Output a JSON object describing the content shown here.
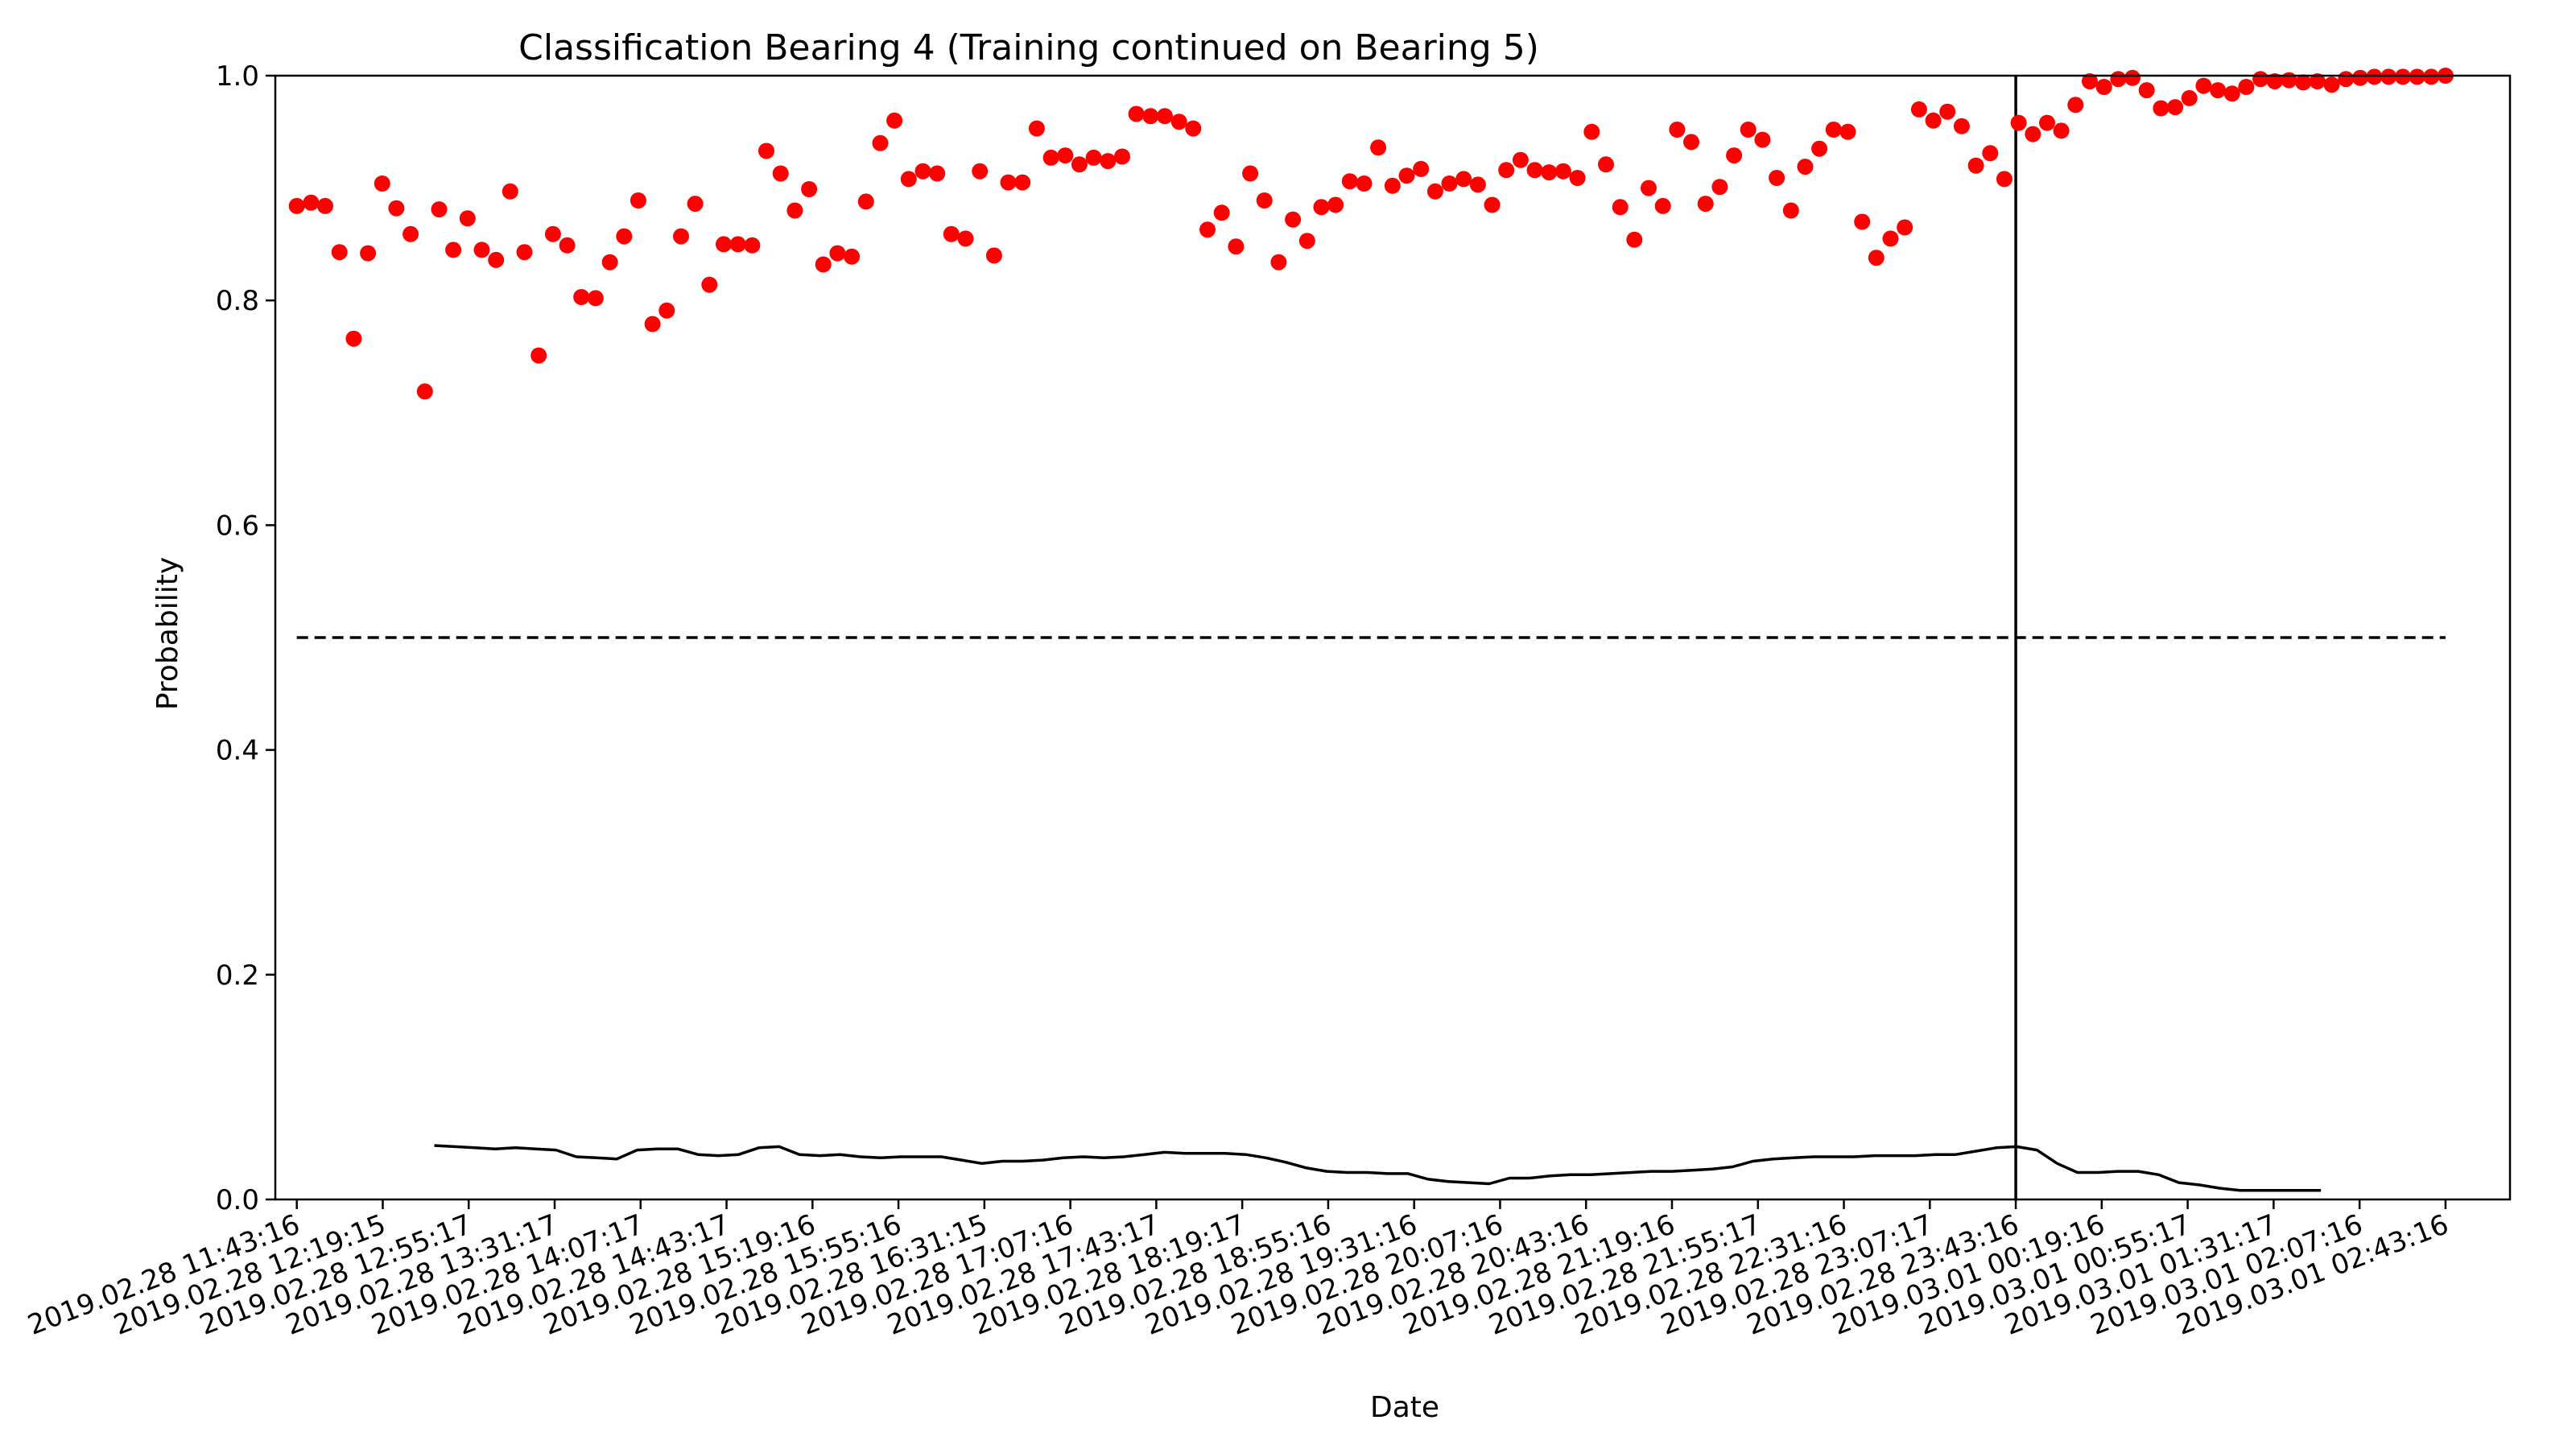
{
  "chart_data": {
    "type": "scatter",
    "title": "Classification Bearing 4 (Training continued on Bearing 5)",
    "xlabel": "Date",
    "ylabel": "Probability",
    "ylim": [
      0,
      1
    ],
    "grid": false,
    "y_ticks": [
      0.0,
      0.2,
      0.4,
      0.6,
      0.8,
      1.0
    ],
    "y_tick_labels": [
      "0.0",
      "0.2",
      "0.4",
      "0.6",
      "0.8",
      "1.0"
    ],
    "x_tick_labels": [
      "2019.02.28 11:43:16",
      "2019.02.28 12:19:15",
      "2019.02.28 12:55:17",
      "2019.02.28 13:31:17",
      "2019.02.28 14:07:17",
      "2019.02.28 14:43:17",
      "2019.02.28 15:19:16",
      "2019.02.28 15:55:16",
      "2019.02.28 16:31:15",
      "2019.02.28 17:07:16",
      "2019.02.28 17:43:17",
      "2019.02.28 18:19:17",
      "2019.02.28 18:55:16",
      "2019.02.28 19:31:16",
      "2019.02.28 20:07:16",
      "2019.02.28 20:43:16",
      "2019.02.28 21:19:16",
      "2019.02.28 21:55:17",
      "2019.02.28 22:31:16",
      "2019.02.28 23:07:17",
      "2019.02.28 23:43:16",
      "2019.03.01 00:19:16",
      "2019.03.01 00:55:17",
      "2019.03.01 01:31:17",
      "2019.03.01 02:07:16",
      "2019.03.01 02:43:16"
    ],
    "xlim": [
      -0.25,
      25.75
    ],
    "points_color": "#ff0000",
    "points": [
      0.884,
      0.887,
      0.884,
      0.843,
      0.766,
      0.842,
      0.904,
      0.882,
      0.859,
      0.719,
      0.881,
      0.845,
      0.873,
      0.845,
      0.836,
      0.897,
      0.843,
      0.751,
      0.859,
      0.849,
      0.803,
      0.802,
      0.834,
      0.857,
      0.889,
      0.779,
      0.791,
      0.857,
      0.886,
      0.814,
      0.85,
      0.85,
      0.849,
      0.933,
      0.913,
      0.88,
      0.899,
      0.832,
      0.842,
      0.839,
      0.888,
      0.94,
      0.96,
      0.908,
      0.915,
      0.913,
      0.859,
      0.855,
      0.915,
      0.84,
      0.905,
      0.905,
      0.953,
      0.927,
      0.929,
      0.921,
      0.927,
      0.924,
      0.928,
      0.966,
      0.964,
      0.964,
      0.959,
      0.953,
      0.863,
      0.878,
      0.848,
      0.913,
      0.889,
      0.834,
      0.872,
      0.853,
      0.883,
      0.885,
      0.906,
      0.904,
      0.936,
      0.902,
      0.911,
      0.917,
      0.897,
      0.904,
      0.908,
      0.903,
      0.885,
      0.916,
      0.925,
      0.916,
      0.914,
      0.915,
      0.909,
      0.95,
      0.921,
      0.883,
      0.854,
      0.9,
      0.884,
      0.952,
      0.941,
      0.886,
      0.901,
      0.929,
      0.952,
      0.943,
      0.909,
      0.88,
      0.919,
      0.935,
      0.952,
      0.95,
      0.87,
      0.838,
      0.855,
      0.865,
      0.97,
      0.96,
      0.968,
      0.955,
      0.92,
      0.931,
      0.908,
      0.958,
      0.948,
      0.958,
      0.951,
      0.974,
      0.995,
      0.99,
      0.997,
      0.998,
      0.987,
      0.971,
      0.972,
      0.98,
      0.991,
      0.987,
      0.984,
      0.99,
      0.997,
      0.995,
      0.996,
      0.994,
      0.995,
      0.992,
      0.997,
      0.998,
      0.999,
      0.999,
      0.999,
      0.999,
      0.999,
      1.0
    ],
    "reference_line": {
      "y": 0.5,
      "style": "dashed",
      "color": "#000000"
    },
    "vertical_line": {
      "x_index": 20.0,
      "color": "#000000"
    },
    "curve": {
      "color": "#000000",
      "x_start_index": 1.6,
      "x_end_index": 23.55,
      "values": [
        0.048,
        0.047,
        0.046,
        0.045,
        0.046,
        0.045,
        0.044,
        0.038,
        0.037,
        0.036,
        0.044,
        0.045,
        0.045,
        0.04,
        0.039,
        0.04,
        0.046,
        0.047,
        0.04,
        0.039,
        0.04,
        0.038,
        0.037,
        0.038,
        0.038,
        0.038,
        0.035,
        0.032,
        0.034,
        0.034,
        0.035,
        0.037,
        0.038,
        0.037,
        0.038,
        0.04,
        0.042,
        0.041,
        0.041,
        0.041,
        0.04,
        0.037,
        0.033,
        0.028,
        0.025,
        0.024,
        0.024,
        0.023,
        0.023,
        0.018,
        0.016,
        0.015,
        0.014,
        0.019,
        0.019,
        0.021,
        0.022,
        0.022,
        0.023,
        0.024,
        0.025,
        0.025,
        0.026,
        0.027,
        0.029,
        0.034,
        0.036,
        0.037,
        0.038,
        0.038,
        0.038,
        0.039,
        0.039,
        0.039,
        0.04,
        0.04,
        0.043,
        0.046,
        0.047,
        0.044,
        0.032,
        0.024,
        0.024,
        0.025,
        0.025,
        0.022,
        0.015,
        0.013,
        0.01,
        0.008,
        0.008,
        0.008,
        0.008,
        0.008
      ]
    }
  }
}
